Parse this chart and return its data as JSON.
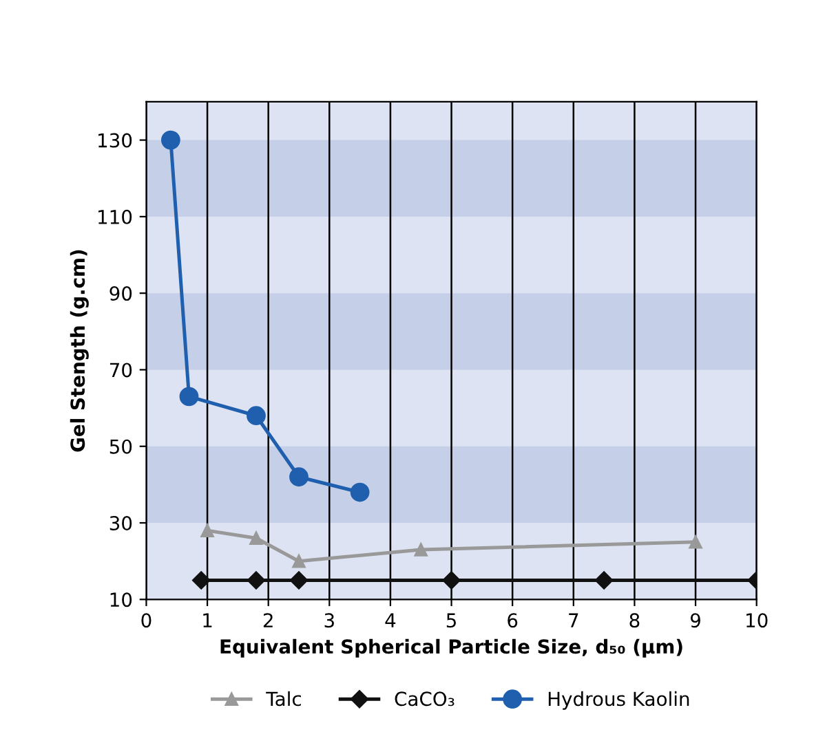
{
  "chart_data": {
    "type": "line",
    "xlabel": "Equivalent Spherical Particle Size, d₅₀ (µm)",
    "ylabel": "Gel Stength (g.cm)",
    "xlim": [
      0,
      10
    ],
    "xticks": [
      0,
      1,
      2,
      3,
      4,
      5,
      6,
      7,
      8,
      9,
      10
    ],
    "ylim": [
      10,
      140
    ],
    "yticks": [
      10,
      30,
      50,
      70,
      90,
      110,
      130
    ],
    "grid": "x",
    "legend": "bottom",
    "bands": [
      {
        "axis": "y",
        "from": 30,
        "to": 50,
        "color": "#c5d0e8"
      },
      {
        "axis": "y",
        "from": 70,
        "to": 90,
        "color": "#c5d0e8"
      },
      {
        "axis": "y",
        "from": 110,
        "to": 130,
        "color": "#c5d0e8"
      }
    ],
    "series": [
      {
        "name": "Talc",
        "color": "#999999",
        "marker": "triangle",
        "x": [
          1.0,
          1.8,
          2.5,
          4.5,
          9.0
        ],
        "values": [
          28,
          26,
          20,
          23,
          25
        ]
      },
      {
        "name": "CaCO₃",
        "color": "#111111",
        "marker": "diamond",
        "x": [
          0.9,
          1.8,
          2.5,
          5.0,
          7.5,
          10.0
        ],
        "values": [
          15,
          15,
          15,
          15,
          15,
          15
        ]
      },
      {
        "name": "Hydrous Kaolin",
        "color": "#1f5fae",
        "marker": "circle",
        "x": [
          0.4,
          0.7,
          1.8,
          2.5,
          3.5
        ],
        "values": [
          130,
          63,
          58,
          42,
          38
        ]
      }
    ]
  }
}
